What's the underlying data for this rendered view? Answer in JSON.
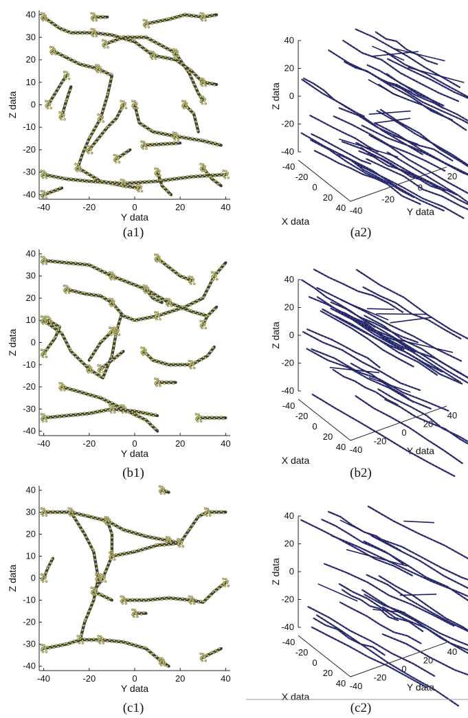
{
  "figure": {
    "captions": [
      "(a1)",
      "(a2)",
      "(b1)",
      "(b2)",
      "(c1)",
      "(c2)"
    ]
  },
  "colors": {
    "fiber_dark": "#3a3f26",
    "bead": "#c8c474",
    "blue_core": "#2f3c9a",
    "line3d": "#1e2060",
    "axis": "#222222"
  },
  "chart_data": [
    {
      "id": "a1",
      "type": "scatter",
      "caption": "(a1)",
      "xlabel": "Y data",
      "ylabel": "Z data",
      "xlim": [
        -42,
        42
      ],
      "ylim": [
        -42,
        42
      ],
      "xticks": [
        -40,
        -20,
        0,
        20,
        40
      ],
      "yticks": [
        -40,
        -30,
        -20,
        -10,
        0,
        10,
        20,
        30,
        40
      ],
      "series": [
        {
          "points": [
            [
              -40,
              39
            ],
            [
              -33,
              34
            ],
            [
              -28,
              32
            ],
            [
              -18,
              32
            ],
            [
              -10,
              31
            ],
            [
              0,
              28
            ],
            [
              8,
              22
            ],
            [
              18,
              20
            ],
            [
              25,
              15
            ],
            [
              30,
              10
            ],
            [
              36,
              9
            ]
          ]
        },
        {
          "points": [
            [
              -38,
              0
            ],
            [
              -35,
              5
            ],
            [
              -32,
              10
            ],
            [
              -30,
              13
            ]
          ]
        },
        {
          "points": [
            [
              -36,
              24
            ],
            [
              -30,
              21
            ],
            [
              -24,
              18
            ],
            [
              -16,
              16
            ],
            [
              -10,
              13
            ],
            [
              -12,
              4
            ],
            [
              -15,
              -6
            ],
            [
              -20,
              -15
            ],
            [
              -23,
              -22
            ],
            [
              -25,
              -28
            ],
            [
              -15,
              -34
            ],
            [
              -5,
              -36
            ],
            [
              2,
              -37
            ]
          ]
        },
        {
          "points": [
            [
              -20,
              -20
            ],
            [
              -12,
              -10
            ],
            [
              -8,
              -6
            ],
            [
              -5,
              0
            ]
          ]
        },
        {
          "points": [
            [
              -13,
              27
            ],
            [
              -5,
              30
            ],
            [
              5,
              30
            ],
            [
              18,
              23
            ],
            [
              24,
              14
            ],
            [
              28,
              5
            ],
            [
              30,
              2
            ]
          ]
        },
        {
          "points": [
            [
              -40,
              -31
            ],
            [
              -30,
              -33
            ],
            [
              -20,
              -34
            ],
            [
              -5,
              -35
            ],
            [
              10,
              -34
            ],
            [
              25,
              -32
            ],
            [
              40,
              -31
            ]
          ]
        },
        {
          "points": [
            [
              0,
              0
            ],
            [
              2,
              -8
            ],
            [
              8,
              -12
            ],
            [
              18,
              -14
            ],
            [
              30,
              -16
            ],
            [
              38,
              -18
            ]
          ]
        },
        {
          "points": [
            [
              -40,
              -40
            ],
            [
              -32,
              -37
            ]
          ]
        },
        {
          "points": [
            [
              -8,
              -24
            ],
            [
              -2,
              -20
            ]
          ]
        },
        {
          "points": [
            [
              4,
              -18
            ],
            [
              20,
              -17
            ]
          ]
        },
        {
          "points": [
            [
              5,
              36
            ],
            [
              15,
              38
            ],
            [
              22,
              40
            ],
            [
              30,
              39
            ],
            [
              36,
              40
            ]
          ]
        },
        {
          "points": [
            [
              10,
              -30
            ],
            [
              12,
              -36
            ],
            [
              16,
              -40
            ]
          ]
        },
        {
          "points": [
            [
              -32,
              -5
            ],
            [
              -30,
              2
            ],
            [
              -28,
              8
            ]
          ]
        },
        {
          "points": [
            [
              30,
              -28
            ],
            [
              34,
              -33
            ],
            [
              38,
              -36
            ]
          ]
        },
        {
          "points": [
            [
              -18,
              39
            ],
            [
              -12,
              39
            ]
          ]
        },
        {
          "points": [
            [
              22,
              0
            ],
            [
              26,
              -4
            ],
            [
              28,
              -12
            ]
          ]
        }
      ]
    },
    {
      "id": "a2",
      "type": "line",
      "caption": "(a2)",
      "xlabel": "X data",
      "ylabel": "Y data",
      "zlabel": "Z data",
      "xticks": [
        -40,
        -20,
        0,
        20,
        40
      ],
      "yticks": [
        -40,
        -20,
        0,
        20
      ],
      "zticks": [
        -40,
        -20,
        0,
        20,
        40
      ],
      "strands": 34,
      "density": 1.0,
      "seed": 11
    },
    {
      "id": "b1",
      "type": "scatter",
      "caption": "(b1)",
      "xlabel": "Y data",
      "ylabel": "Z data",
      "xlim": [
        -42,
        42
      ],
      "ylim": [
        -42,
        42
      ],
      "xticks": [
        -40,
        -20,
        0,
        20,
        40
      ],
      "yticks": [
        -40,
        -30,
        -20,
        -10,
        0,
        10,
        20,
        30,
        40
      ],
      "series": [
        {
          "points": [
            [
              -40,
              37
            ],
            [
              -30,
              36
            ],
            [
              -20,
              35
            ],
            [
              -10,
              30
            ],
            [
              -5,
              28
            ],
            [
              5,
              24
            ],
            [
              15,
              18
            ],
            [
              25,
              14
            ],
            [
              32,
              12
            ]
          ]
        },
        {
          "points": [
            [
              -30,
              24
            ],
            [
              -22,
              22
            ],
            [
              -15,
              21
            ],
            [
              -10,
              18
            ],
            [
              -5,
              12
            ],
            [
              0,
              10
            ],
            [
              10,
              12
            ],
            [
              22,
              16
            ],
            [
              30,
              20
            ],
            [
              35,
              30
            ],
            [
              40,
              36
            ]
          ]
        },
        {
          "points": [
            [
              -40,
              -5
            ],
            [
              -35,
              2
            ],
            [
              -33,
              7
            ],
            [
              -38,
              10
            ]
          ]
        },
        {
          "points": [
            [
              -40,
              10
            ],
            [
              -32,
              4
            ],
            [
              -28,
              -4
            ],
            [
              -20,
              -12
            ],
            [
              -14,
              -16
            ],
            [
              -10,
              -6
            ],
            [
              -8,
              5
            ],
            [
              -6,
              12
            ]
          ]
        },
        {
          "points": [
            [
              -32,
              -20
            ],
            [
              -25,
              -22
            ],
            [
              -15,
              -25
            ],
            [
              -5,
              -30
            ],
            [
              5,
              -35
            ],
            [
              10,
              -40
            ]
          ]
        },
        {
          "points": [
            [
              -40,
              -34
            ],
            [
              -30,
              -33
            ],
            [
              -20,
              -32
            ],
            [
              -10,
              -30
            ],
            [
              0,
              -31
            ],
            [
              10,
              -33
            ]
          ]
        },
        {
          "points": [
            [
              -15,
              -12
            ],
            [
              -10,
              -8
            ],
            [
              -5,
              -4
            ]
          ]
        },
        {
          "points": [
            [
              4,
              -4
            ],
            [
              8,
              -8
            ],
            [
              15,
              -10
            ],
            [
              25,
              -10
            ],
            [
              32,
              -6
            ],
            [
              35,
              -2
            ]
          ]
        },
        {
          "points": [
            [
              10,
              -18
            ],
            [
              18,
              -18
            ]
          ]
        },
        {
          "points": [
            [
              28,
              -34
            ],
            [
              34,
              -34
            ],
            [
              40,
              -34
            ]
          ]
        },
        {
          "points": [
            [
              10,
              38
            ],
            [
              15,
              34
            ],
            [
              20,
              30
            ],
            [
              25,
              28
            ]
          ]
        },
        {
          "points": [
            [
              5,
              24
            ],
            [
              8,
              20
            ],
            [
              12,
              18
            ]
          ]
        },
        {
          "points": [
            [
              -10,
              5
            ],
            [
              -15,
              0
            ],
            [
              -20,
              -8
            ]
          ]
        },
        {
          "points": [
            [
              30,
              8
            ],
            [
              32,
              12
            ],
            [
              36,
              16
            ]
          ]
        }
      ]
    },
    {
      "id": "b2",
      "type": "line",
      "caption": "(b2)",
      "xlabel": "X data",
      "ylabel": "Y data",
      "zlabel": "Z data",
      "xticks": [
        -40,
        -20,
        0,
        20,
        40
      ],
      "yticks": [
        -40,
        -20,
        0,
        20,
        40
      ],
      "zticks": [
        -40,
        -20,
        0,
        20,
        40
      ],
      "strands": 26,
      "density": 0.9,
      "seed": 23
    },
    {
      "id": "c1",
      "type": "scatter",
      "caption": "(c1)",
      "xlabel": "Y data",
      "ylabel": "Z data",
      "xlim": [
        -42,
        42
      ],
      "ylim": [
        -42,
        42
      ],
      "xticks": [
        -40,
        -20,
        0,
        20,
        40
      ],
      "yticks": [
        -40,
        -30,
        -20,
        -10,
        0,
        10,
        20,
        30,
        40
      ],
      "series": [
        {
          "points": [
            [
              -40,
              30
            ],
            [
              -28,
              30
            ],
            [
              -20,
              28
            ],
            [
              -12,
              26
            ],
            [
              -5,
              22
            ],
            [
              5,
              19
            ],
            [
              15,
              17
            ],
            [
              20,
              16
            ]
          ]
        },
        {
          "points": [
            [
              -28,
              30
            ],
            [
              -22,
              20
            ],
            [
              -18,
              12
            ],
            [
              -16,
              0
            ],
            [
              -18,
              -10
            ],
            [
              -22,
              -20
            ],
            [
              -24,
              -28
            ]
          ]
        },
        {
          "points": [
            [
              -12,
              26
            ],
            [
              -10,
              20
            ],
            [
              -10,
              10
            ],
            [
              -14,
              0
            ],
            [
              -18,
              -6
            ]
          ]
        },
        {
          "points": [
            [
              -10,
              10
            ],
            [
              0,
              12
            ],
            [
              10,
              15
            ],
            [
              20,
              16
            ]
          ]
        },
        {
          "points": [
            [
              20,
              16
            ],
            [
              24,
              22
            ],
            [
              28,
              28
            ],
            [
              32,
              30
            ],
            [
              40,
              30
            ]
          ]
        },
        {
          "points": [
            [
              -40,
              -32
            ],
            [
              -30,
              -30
            ],
            [
              -24,
              -28
            ],
            [
              -15,
              -28
            ],
            [
              -5,
              -29
            ],
            [
              5,
              -32
            ],
            [
              12,
              -38
            ],
            [
              15,
              -40
            ]
          ]
        },
        {
          "points": [
            [
              -40,
              0
            ],
            [
              -38,
              5
            ],
            [
              -36,
              9
            ]
          ]
        },
        {
          "points": [
            [
              -5,
              -10
            ],
            [
              5,
              -10
            ],
            [
              15,
              -9
            ],
            [
              25,
              -10
            ],
            [
              30,
              -11
            ],
            [
              35,
              -6
            ],
            [
              40,
              -2
            ]
          ]
        },
        {
          "points": [
            [
              0,
              -16
            ],
            [
              5,
              -16
            ]
          ]
        },
        {
          "points": [
            [
              12,
              40
            ],
            [
              15,
              39
            ]
          ]
        },
        {
          "points": [
            [
              30,
              -36
            ],
            [
              34,
              -34
            ],
            [
              38,
              -32
            ]
          ]
        },
        {
          "points": [
            [
              -18,
              -6
            ],
            [
              -14,
              -8
            ],
            [
              -10,
              -10
            ]
          ]
        }
      ]
    },
    {
      "id": "c2",
      "type": "line",
      "caption": "(c2)",
      "xlabel": "X data",
      "ylabel": "Y data",
      "zlabel": "Z data",
      "xticks": [
        -40,
        -20,
        0,
        20,
        40
      ],
      "yticks": [
        -40,
        -20,
        0,
        20,
        40
      ],
      "zticks": [
        -40,
        -20,
        0,
        20,
        40
      ],
      "strands": 22,
      "density": 0.85,
      "seed": 37
    }
  ]
}
